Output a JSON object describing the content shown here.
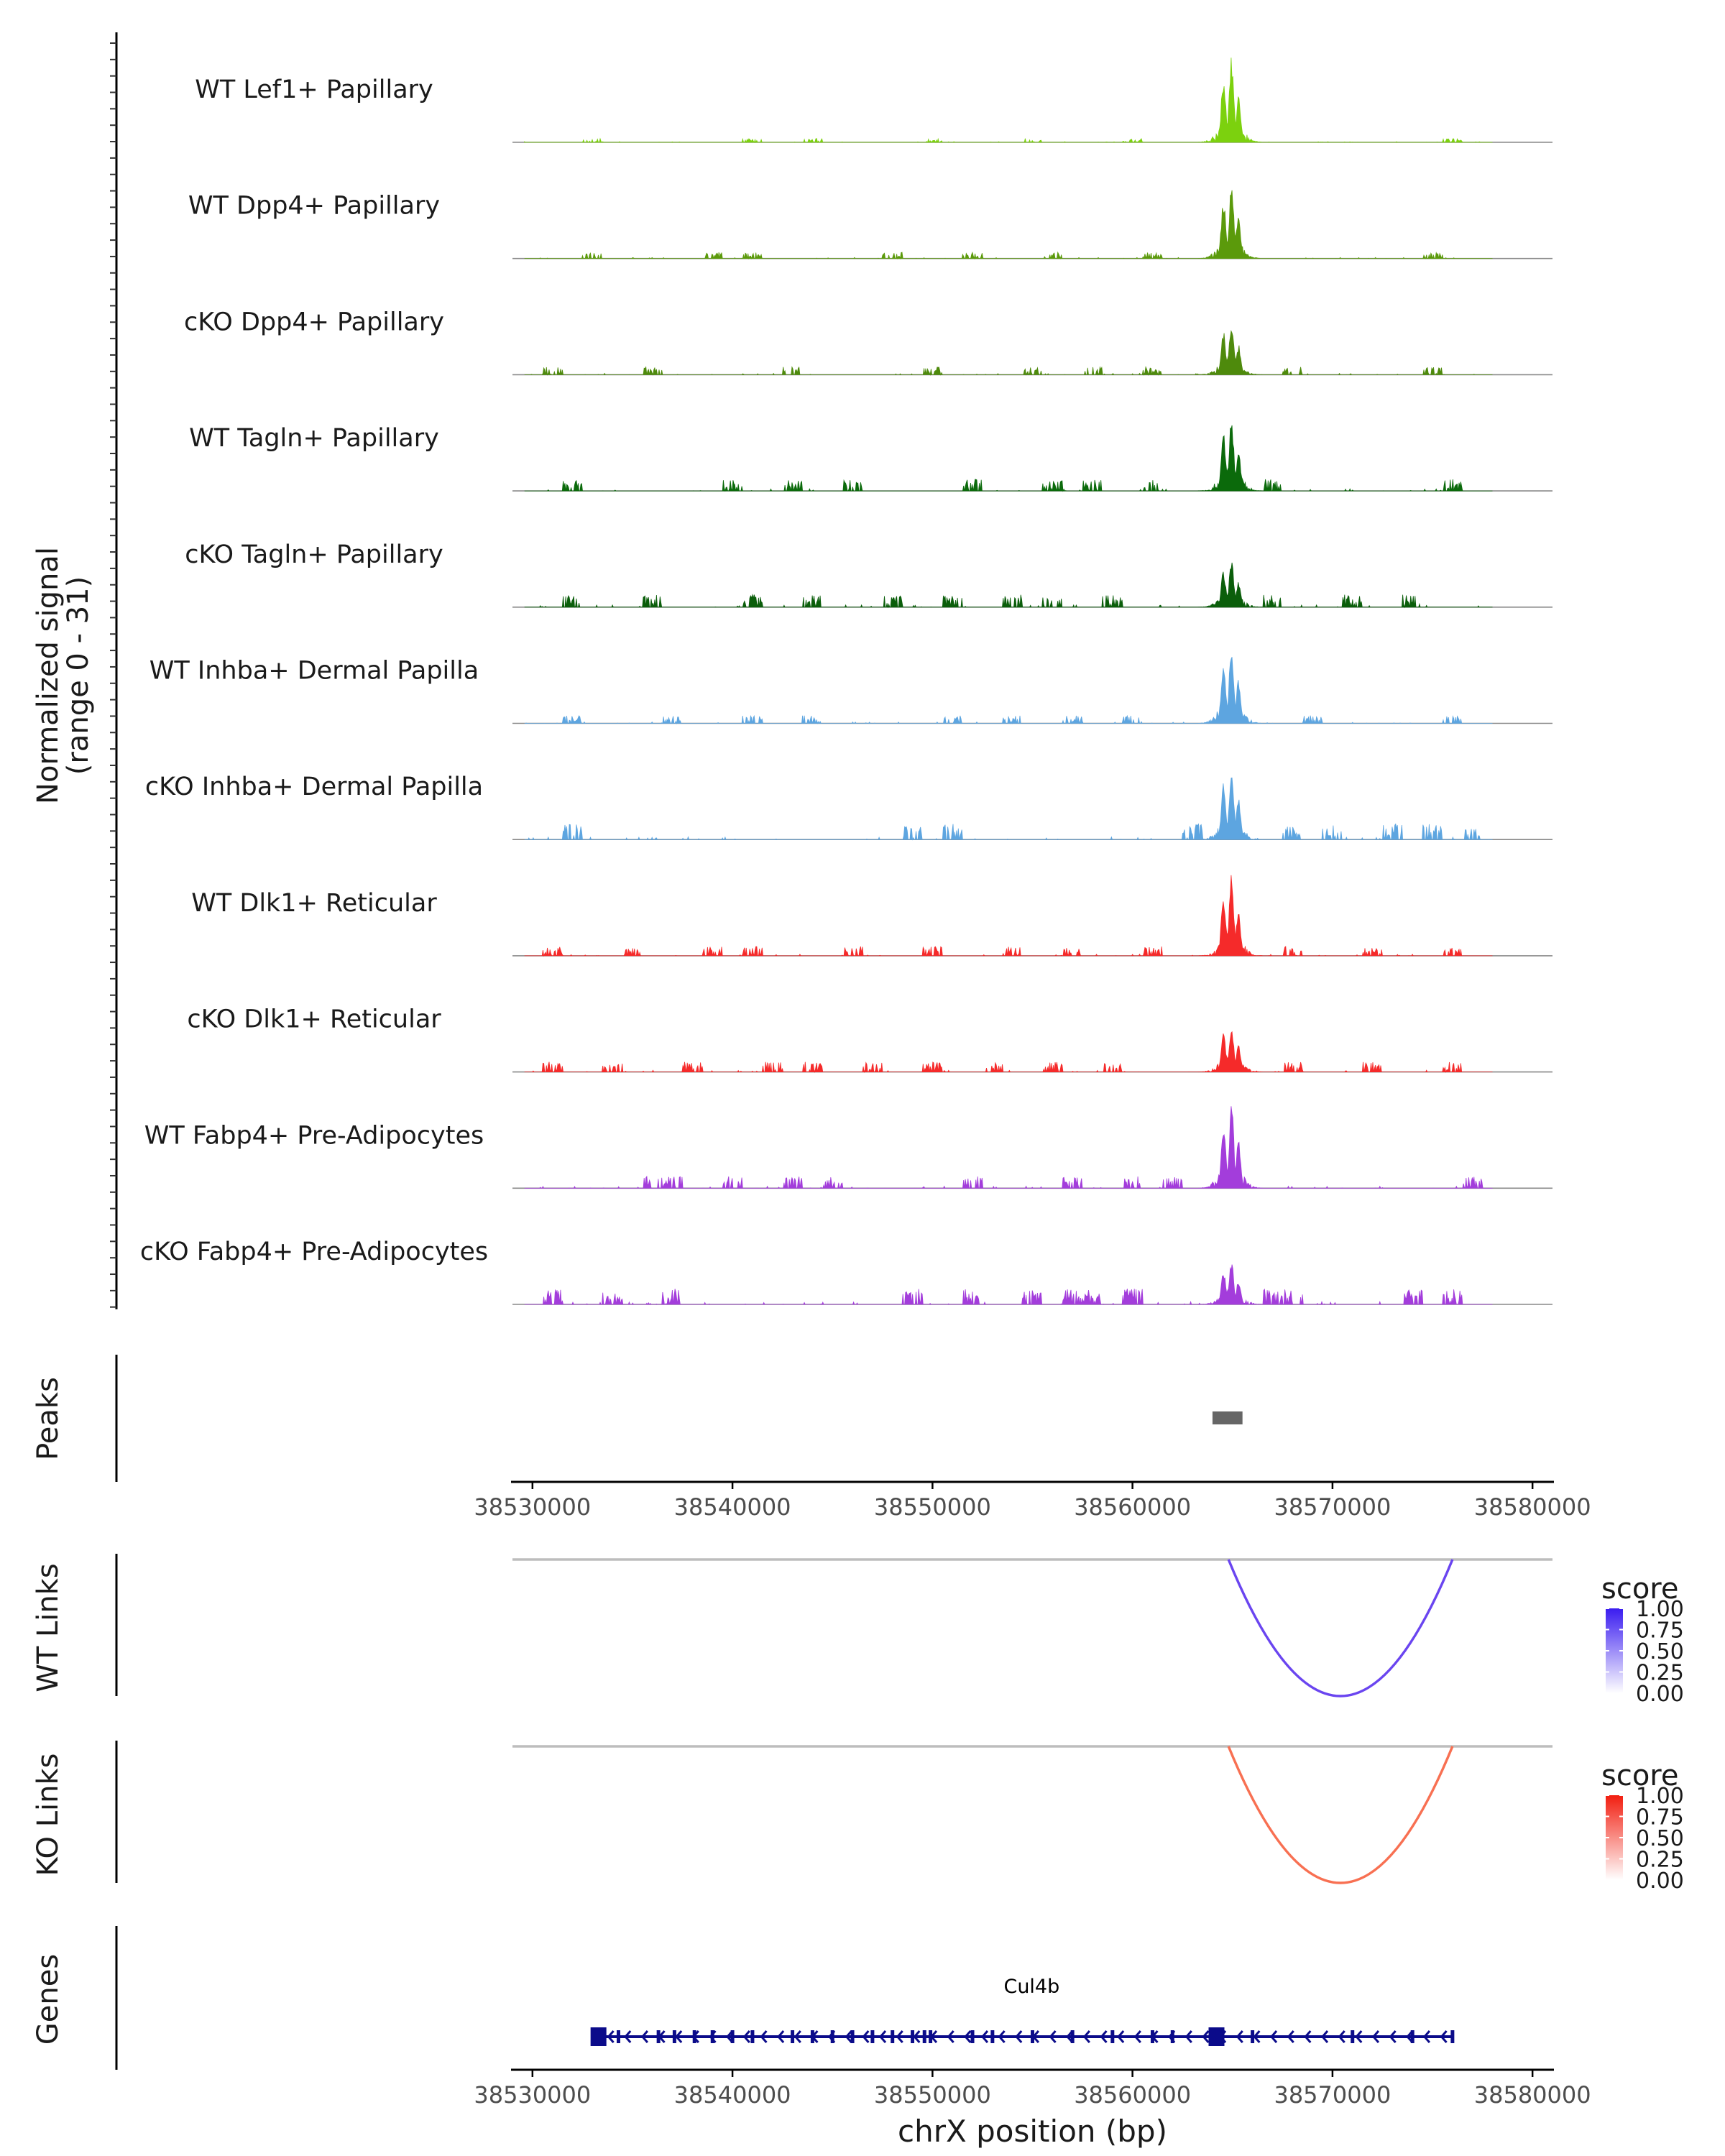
{
  "chart_data": {
    "type": "area",
    "title": "",
    "xlabel": "chrX position (bp)",
    "region": {
      "chrom": "chrX",
      "start": 38529000,
      "end": 38581000
    },
    "x_ticks": [
      38530000,
      38540000,
      38550000,
      38560000,
      38570000,
      38580000
    ],
    "x_tick_labels": [
      "38530000",
      "38540000",
      "38550000",
      "38560000",
      "38570000",
      "38580000"
    ],
    "coverage_ylabel": "Normalized signal",
    "coverage_ylabel_sub": "(range 0 - 31)",
    "coverage_range": [
      0,
      31
    ],
    "tracks": [
      {
        "name": "WT Lef1+ Papillary",
        "color": "#7CD10E",
        "peak": 31,
        "noise": 0.5,
        "bg": [
          38533000,
          38541000,
          38544000,
          38550000,
          38555000,
          38560000,
          38576000
        ]
      },
      {
        "name": "WT Dpp4+ Papillary",
        "color": "#5B9A0B",
        "peak": 28,
        "noise": 0.8,
        "bg": [
          38533000,
          38539000,
          38541000,
          38548000,
          38552000,
          38556000,
          38561000,
          38575000
        ]
      },
      {
        "name": "cKO Dpp4+ Papillary",
        "color": "#4E8A0C",
        "peak": 20,
        "noise": 1.0,
        "bg": [
          38531000,
          38536000,
          38543000,
          38550000,
          38555000,
          38558000,
          38561000,
          38568000,
          38575000
        ]
      },
      {
        "name": "WT Tagln+ Papillary",
        "color": "#0B6A0B",
        "peak": 27,
        "noise": 1.5,
        "bg": [
          38532000,
          38540000,
          38543000,
          38546000,
          38552000,
          38556000,
          38558000,
          38561000,
          38567000,
          38576000
        ]
      },
      {
        "name": "cKO Tagln+ Papillary",
        "color": "#0B5E0B",
        "peak": 17,
        "noise": 1.6,
        "bg": [
          38532000,
          38536000,
          38541000,
          38544000,
          38548000,
          38551000,
          38554000,
          38556000,
          38559000,
          38567000,
          38571000,
          38574000
        ]
      },
      {
        "name": "WT Inhba+ Dermal Papilla",
        "color": "#5DA5E0",
        "peak": 30,
        "noise": 1.0,
        "bg": [
          38532000,
          38537000,
          38541000,
          38544000,
          38551000,
          38554000,
          38557000,
          38560000,
          38569000,
          38576000
        ]
      },
      {
        "name": "cKO Inhba+ Dermal Papilla",
        "color": "#5DA5E0",
        "peak": 27,
        "noise": 2.0,
        "bg": [
          38532000,
          38549000,
          38551000,
          38563000,
          38568000,
          38570000,
          38573000,
          38575000,
          38577000
        ]
      },
      {
        "name": "WT Dlk1+ Reticular",
        "color": "#F52A2A",
        "peak": 30,
        "noise": 1.2,
        "bg": [
          38531000,
          38535000,
          38539000,
          38541000,
          38546000,
          38550000,
          38554000,
          38557000,
          38561000,
          38568000,
          38572000,
          38576000
        ]
      },
      {
        "name": "cKO Dlk1+ Reticular",
        "color": "#F52A2A",
        "peak": 18,
        "noise": 1.3,
        "bg": [
          38531000,
          38534000,
          38538000,
          38542000,
          38544000,
          38547000,
          38550000,
          38553000,
          38556000,
          38559000,
          38568000,
          38572000,
          38576000
        ]
      },
      {
        "name": "WT Fabp4+ Pre-Adipocytes",
        "color": "#A33DDB",
        "peak": 31,
        "noise": 1.5,
        "bg": [
          38536000,
          38537000,
          38540000,
          38543000,
          38545000,
          38552000,
          38557000,
          38560000,
          38562000,
          38577000
        ]
      },
      {
        "name": "cKO Fabp4+ Pre-Adipocytes",
        "color": "#A33DDB",
        "peak": 16,
        "noise": 2.0,
        "bg": [
          38531000,
          38534000,
          38537000,
          38549000,
          38552000,
          38555000,
          38557000,
          38558000,
          38560000,
          38567000,
          38568000,
          38574000,
          38576000
        ]
      }
    ],
    "peaks_label": "Peaks",
    "peaks": [
      {
        "start": 38564000,
        "end": 38565500
      }
    ],
    "link_tracks": [
      {
        "label": "WT Links",
        "legend_title": "score",
        "score": 0.75,
        "start": 38564800,
        "end": 38576000,
        "color_max": "#3A1CF0",
        "color_min": "#FFFFFF",
        "arc_color": "#6A45F0",
        "legend_ticks": [
          "1.00",
          "0.75",
          "0.50",
          "0.25",
          "0.00"
        ]
      },
      {
        "label": "KO Links",
        "legend_title": "score",
        "score": 0.65,
        "start": 38564800,
        "end": 38576000,
        "color_max": "#F21E10",
        "color_min": "#FFFFFF",
        "arc_color": "#F87052",
        "legend_ticks": [
          "1.00",
          "0.75",
          "0.50",
          "0.25",
          "0.00"
        ]
      }
    ],
    "genes_label": "Genes",
    "gene": {
      "name": "Cul4b",
      "strand": "-",
      "start": 38533200,
      "end": 38576000,
      "color": "#0B0B8A",
      "exons": [
        38533300,
        38534300,
        38536300,
        38537100,
        38538100,
        38539000,
        38540000,
        38541000,
        38543000,
        38544000,
        38545000,
        38546000,
        38547000,
        38548000,
        38549000,
        38549600,
        38549900,
        38552000,
        38553000,
        38555000,
        38557000,
        38559000,
        38561000,
        38562000,
        38564200,
        38566000,
        38571000,
        38574000,
        38576000
      ]
    }
  }
}
